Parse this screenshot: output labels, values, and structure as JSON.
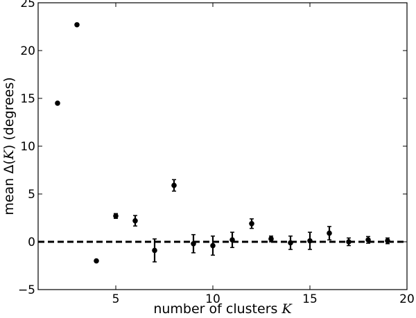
{
  "chart_data": {
    "type": "scatter",
    "title": "",
    "xlabel": {
      "prefix": "number of clusters ",
      "var": "K"
    },
    "ylabel": {
      "prefix": "mean Δ(",
      "var": "K",
      "suffix": ") (degrees)"
    },
    "xlim": [
      1,
      20
    ],
    "ylim": [
      -5,
      25
    ],
    "xticks": [
      5,
      10,
      15,
      20
    ],
    "yticks": [
      -5,
      0,
      5,
      10,
      15,
      20,
      25
    ],
    "xtick_labels": [
      "5",
      "10",
      "15",
      "20"
    ],
    "ytick_labels": [
      "−5",
      "0",
      "5",
      "10",
      "15",
      "20",
      "25"
    ],
    "grid": false,
    "reference_line": {
      "y": 0,
      "style": "dashed"
    },
    "series": [
      {
        "points": [
          {
            "x": 2,
            "y": 14.5,
            "err": 0.1
          },
          {
            "x": 3,
            "y": 22.7,
            "err": 0.1
          },
          {
            "x": 4,
            "y": -2.0,
            "err": 0.1
          },
          {
            "x": 5,
            "y": 2.7,
            "err": 0.25
          },
          {
            "x": 6,
            "y": 2.2,
            "err": 0.55
          },
          {
            "x": 7,
            "y": -0.9,
            "err": 1.2
          },
          {
            "x": 8,
            "y": 5.9,
            "err": 0.6
          },
          {
            "x": 9,
            "y": -0.2,
            "err": 0.95
          },
          {
            "x": 10,
            "y": -0.4,
            "err": 1.0
          },
          {
            "x": 11,
            "y": 0.2,
            "err": 0.8
          },
          {
            "x": 12,
            "y": 1.9,
            "err": 0.5
          },
          {
            "x": 13,
            "y": 0.3,
            "err": 0.3
          },
          {
            "x": 14,
            "y": -0.1,
            "err": 0.7
          },
          {
            "x": 15,
            "y": 0.1,
            "err": 0.9
          },
          {
            "x": 16,
            "y": 0.9,
            "err": 0.7
          },
          {
            "x": 17,
            "y": 0.0,
            "err": 0.4
          },
          {
            "x": 18,
            "y": 0.2,
            "err": 0.35
          },
          {
            "x": 19,
            "y": 0.1,
            "err": 0.3
          }
        ]
      }
    ]
  }
}
